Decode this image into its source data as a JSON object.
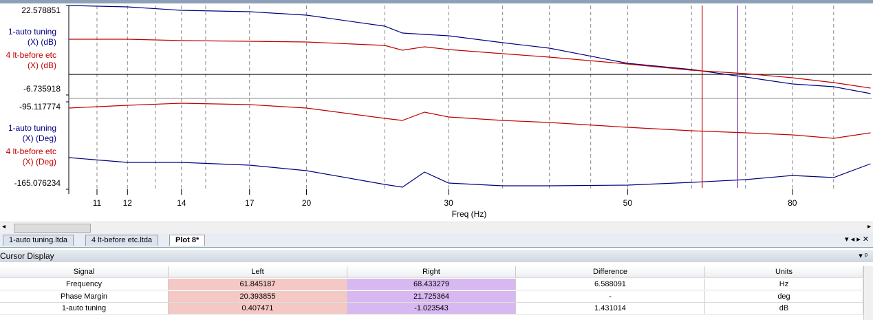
{
  "chart_data": {
    "type": "line",
    "x_label": "Freq (Hz)",
    "xlog": true,
    "xlim": [
      10.15,
      100.3
    ],
    "xticks": [
      11,
      12,
      14,
      17,
      20,
      30,
      50,
      80
    ],
    "minor_xticks": [
      13,
      15,
      25,
      35,
      40,
      45,
      60,
      70,
      90
    ],
    "x": [
      10.15,
      12,
      14,
      17,
      20,
      25,
      26.3,
      28,
      30,
      35,
      40,
      50,
      60,
      70,
      80,
      90,
      100
    ],
    "cursor_colors": [
      "#c00000",
      "#7030a0"
    ],
    "panels": [
      {
        "ylim": [
          -6.735918,
          22.578851
        ],
        "yticks": [
          -6.735918,
          22.578851
        ],
        "ref_line": 0,
        "series": [
          {
            "name": "1-auto tuning (X) (dB)",
            "color": "#000080",
            "values": [
              22.58,
              22.13,
              21.0,
              20.55,
              19.42,
              15.81,
              13.56,
              13.11,
              12.66,
              10.4,
              8.6,
              3.64,
              1.61,
              -0.87,
              -3.13,
              -4.03,
              -6.29
            ]
          },
          {
            "name": "4 lt-before etc (X) (dB)",
            "color": "#c00000",
            "values": [
              11.53,
              11.53,
              11.08,
              10.85,
              10.63,
              9.5,
              7.92,
              9.05,
              8.15,
              6.79,
              5.67,
              3.41,
              1.38,
              0.25,
              -1.1,
              -2.68,
              -4.48
            ]
          }
        ]
      },
      {
        "ylim": [
          -165.076234,
          -95.117774
        ],
        "yticks": [
          -165.076234,
          -95.117774
        ],
        "series": [
          {
            "name": "1-auto tuning (X) (Deg)",
            "color": "#000080",
            "values": [
              -139.74,
              -143.59,
              -143.59,
              -145.8,
              -150.2,
              -161.22,
              -163.42,
              -151.3,
              -160.12,
              -162.32,
              -162.32,
              -161.77,
              -159.57,
              -157.37,
              -154.06,
              -155.72,
              -144.69
            ]
          },
          {
            "name": "4 lt-before etc (X) (Deg)",
            "color": "#c00000",
            "values": [
              -100.07,
              -97.87,
              -96.22,
              -97.32,
              -100.07,
              -108.34,
              -109.99,
              -103.38,
              -107.24,
              -109.99,
              -111.64,
              -115.5,
              -118.25,
              -119.9,
              -121.56,
              -124.31,
              -119.9
            ]
          }
        ]
      }
    ]
  },
  "tabs": [
    "1-auto tuning.ltda",
    "4 lt-before etc.ltda",
    "Plot 8*"
  ],
  "panel_title": "Cursor Display",
  "table": {
    "columns": [
      "Signal",
      "Left",
      "Right",
      "Difference",
      "Units"
    ],
    "rows": [
      [
        "Frequency",
        "61.845187",
        "68.433279",
        "6.588091",
        "Hz"
      ],
      [
        "Phase Margin",
        "20.393855",
        "21.725364",
        "-",
        "deg"
      ],
      [
        "1-auto tuning",
        "0.407471",
        "-1.023543",
        "1.431014",
        "dB"
      ]
    ]
  }
}
